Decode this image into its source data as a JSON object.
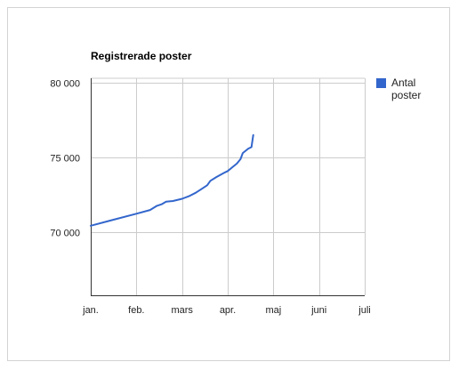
{
  "chart_data": {
    "type": "line",
    "title": "Registrerade poster",
    "xlabel": "",
    "ylabel": "",
    "x_ticks": [
      "jan.",
      "feb.",
      "mars",
      "apr.",
      "maj",
      "juni",
      "juli"
    ],
    "y_ticks": [
      "70 000",
      "75 000",
      "80 000"
    ],
    "y_tick_values": [
      70000,
      75000,
      80000
    ],
    "ylim": [
      65800,
      80300
    ],
    "xlim": [
      0,
      6
    ],
    "grid": true,
    "legend_position": "right",
    "series": [
      {
        "name": "Antal poster",
        "color": "#3366cc",
        "points": [
          [
            0.0,
            70450
          ],
          [
            0.5,
            70850
          ],
          [
            1.0,
            71250
          ],
          [
            1.3,
            71500
          ],
          [
            1.45,
            71780
          ],
          [
            1.55,
            71880
          ],
          [
            1.65,
            72050
          ],
          [
            1.8,
            72100
          ],
          [
            2.0,
            72250
          ],
          [
            2.15,
            72420
          ],
          [
            2.3,
            72650
          ],
          [
            2.45,
            72950
          ],
          [
            2.55,
            73150
          ],
          [
            2.62,
            73450
          ],
          [
            2.75,
            73700
          ],
          [
            2.9,
            73950
          ],
          [
            3.0,
            74100
          ],
          [
            3.1,
            74350
          ],
          [
            3.2,
            74600
          ],
          [
            3.28,
            74900
          ],
          [
            3.33,
            75300
          ],
          [
            3.45,
            75600
          ],
          [
            3.52,
            75700
          ],
          [
            3.56,
            76500
          ]
        ]
      }
    ]
  }
}
